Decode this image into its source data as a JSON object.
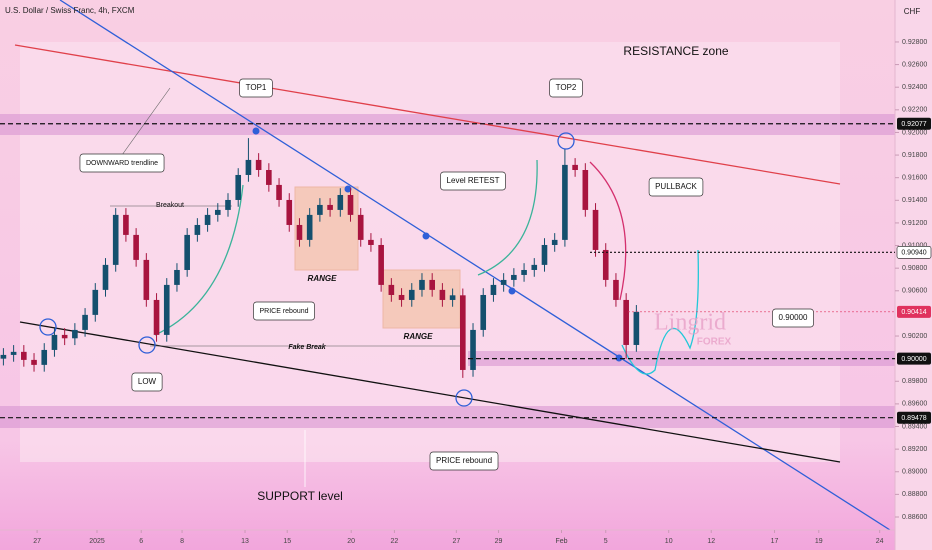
{
  "chart_data": {
    "type": "candlestick",
    "title": "U.S. Dollar / Swiss Franc, 4h, FXCM",
    "currency": "CHF",
    "up_color": "#14506e",
    "down_color": "#a8143f",
    "grid": false,
    "xlim": [
      -1,
      262
    ],
    "ylim": [
      0.88485,
      0.93171
    ],
    "xticks": [
      {
        "value": 9.9,
        "label": "27"
      },
      {
        "value": 27.5,
        "label": "2025"
      },
      {
        "value": 40.5,
        "label": "6"
      },
      {
        "value": 52.5,
        "label": "8"
      },
      {
        "value": 71,
        "label": "13"
      },
      {
        "value": 83.4,
        "label": "15"
      },
      {
        "value": 102.2,
        "label": "20"
      },
      {
        "value": 114.9,
        "label": "22"
      },
      {
        "value": 133.1,
        "label": "27"
      },
      {
        "value": 145.5,
        "label": "29"
      },
      {
        "value": 164,
        "label": "Feb"
      },
      {
        "value": 177,
        "label": "5"
      },
      {
        "value": 195.5,
        "label": "10"
      },
      {
        "value": 208,
        "label": "12"
      },
      {
        "value": 226.6,
        "label": "17"
      },
      {
        "value": 239.6,
        "label": "19"
      },
      {
        "value": 257.5,
        "label": "24"
      }
    ],
    "yticks": [
      {
        "value": 0.928,
        "label": "0.92800"
      },
      {
        "value": 0.926,
        "label": "0.92600"
      },
      {
        "value": 0.924,
        "label": "0.92400"
      },
      {
        "value": 0.922,
        "label": "0.92200"
      },
      {
        "value": 0.92,
        "label": "0.92000"
      },
      {
        "value": 0.918,
        "label": "0.91800"
      },
      {
        "value": 0.916,
        "label": "0.91600"
      },
      {
        "value": 0.914,
        "label": "0.91400"
      },
      {
        "value": 0.912,
        "label": "0.91200"
      },
      {
        "value": 0.91,
        "label": "0.91000"
      },
      {
        "value": 0.908,
        "label": "0.90800"
      },
      {
        "value": 0.906,
        "label": "0.90600"
      },
      {
        "value": 0.902,
        "label": "0.90200"
      },
      {
        "value": 0.898,
        "label": "0.89800"
      },
      {
        "value": 0.896,
        "label": "0.89600"
      },
      {
        "value": 0.894,
        "label": "0.89400"
      },
      {
        "value": 0.892,
        "label": "0.89200"
      },
      {
        "value": 0.89,
        "label": "0.89000"
      },
      {
        "value": 0.888,
        "label": "0.88800"
      },
      {
        "value": 0.886,
        "label": "0.88600"
      }
    ],
    "price_levels": [
      {
        "value": 0.92077,
        "label": "0.92077",
        "color": "#111111"
      },
      {
        "value": 0.9094,
        "label": "0.90940",
        "color": "#ffffff"
      },
      {
        "value": 0.90414,
        "label": "0.90414",
        "color": "#e0325e"
      },
      {
        "value": 0.9,
        "label": "0.90000",
        "color": "#111111"
      },
      {
        "value": 0.89478,
        "label": "0.89478",
        "color": "#111111"
      }
    ],
    "x": [
      0,
      3,
      6,
      9,
      12,
      15,
      18,
      21,
      24,
      27,
      30,
      33,
      36,
      39,
      42,
      45,
      48,
      51,
      54,
      57,
      60,
      63,
      66,
      69,
      72,
      75,
      78,
      81,
      84,
      87,
      90,
      93,
      96,
      99,
      102,
      105,
      108,
      111,
      114,
      117,
      120,
      123,
      126,
      129,
      132,
      135,
      138,
      141,
      144,
      147,
      150,
      153,
      156,
      159,
      162,
      165,
      168,
      171,
      174,
      177,
      180,
      183,
      186
    ],
    "open": [
      0.9,
      0.90033,
      0.9006,
      0.89989,
      0.89945,
      0.90077,
      0.9021,
      0.9018,
      0.90254,
      0.90387,
      0.90608,
      0.90829,
      0.91271,
      0.91094,
      0.90873,
      0.90519,
      0.9021,
      0.90652,
      0.90784,
      0.91094,
      0.91182,
      0.91271,
      0.91315,
      0.91403,
      0.91624,
      0.91757,
      0.91668,
      0.91536,
      0.91403,
      0.91182,
      0.9105,
      0.91271,
      0.91359,
      0.91315,
      0.91447,
      0.91271,
      0.9105,
      0.91005,
      0.90652,
      0.90563,
      0.90519,
      0.90608,
      0.90696,
      0.90608,
      0.90519,
      0.9056,
      0.899,
      0.90254,
      0.90563,
      0.90652,
      0.90696,
      0.9074,
      0.90784,
      0.90829,
      0.91005,
      0.9105,
      0.91713,
      0.91668,
      0.91315,
      0.90961,
      0.90696,
      0.90519,
      0.90121
    ],
    "high": [
      0.90093,
      0.9012,
      0.9012,
      0.90049,
      0.90137,
      0.9027,
      0.9027,
      0.90314,
      0.90447,
      0.90668,
      0.90889,
      0.91331,
      0.91331,
      0.91154,
      0.90933,
      0.90579,
      0.90712,
      0.90844,
      0.91154,
      0.91242,
      0.91331,
      0.91375,
      0.91463,
      0.91684,
      0.9195,
      0.91817,
      0.91728,
      0.91596,
      0.91463,
      0.91242,
      0.91331,
      0.91419,
      0.91419,
      0.91507,
      0.91507,
      0.91331,
      0.9111,
      0.91065,
      0.90712,
      0.90623,
      0.90668,
      0.90756,
      0.90756,
      0.90668,
      0.9062,
      0.9062,
      0.90314,
      0.90623,
      0.90712,
      0.90756,
      0.908,
      0.90844,
      0.90889,
      0.91065,
      0.9111,
      0.9185,
      0.91773,
      0.91728,
      0.91375,
      0.91021,
      0.90756,
      0.90579,
      0.90474
    ],
    "low": [
      0.8994,
      0.89973,
      0.89929,
      0.89885,
      0.89885,
      0.90017,
      0.9012,
      0.9012,
      0.90194,
      0.90327,
      0.90548,
      0.90769,
      0.91034,
      0.90813,
      0.90459,
      0.9015,
      0.9015,
      0.90592,
      0.90724,
      0.91034,
      0.91122,
      0.91211,
      0.91255,
      0.91343,
      0.91564,
      0.91608,
      0.91476,
      0.91343,
      0.91122,
      0.9099,
      0.9099,
      0.91211,
      0.91255,
      0.91255,
      0.91211,
      0.9099,
      0.90945,
      0.90592,
      0.90503,
      0.90459,
      0.90459,
      0.90548,
      0.90548,
      0.90459,
      0.90459,
      0.8983,
      0.8984,
      0.90194,
      0.90503,
      0.90592,
      0.90636,
      0.9068,
      0.90724,
      0.90769,
      0.90945,
      0.9099,
      0.91608,
      0.91255,
      0.90901,
      0.90636,
      0.90459,
      0.9,
      0.90061
    ],
    "close": [
      0.90033,
      0.9006,
      0.89989,
      0.89945,
      0.90077,
      0.9021,
      0.9018,
      0.90254,
      0.90387,
      0.90608,
      0.90829,
      0.91271,
      0.91094,
      0.90873,
      0.90519,
      0.9021,
      0.90652,
      0.90784,
      0.91094,
      0.91182,
      0.91271,
      0.91315,
      0.91403,
      0.91624,
      0.91757,
      0.91668,
      0.91536,
      0.91403,
      0.91182,
      0.9105,
      0.91271,
      0.91359,
      0.91315,
      0.91447,
      0.91271,
      0.9105,
      0.91005,
      0.90652,
      0.90563,
      0.90519,
      0.90608,
      0.90696,
      0.90608,
      0.90519,
      0.9056,
      0.899,
      0.90254,
      0.90563,
      0.90652,
      0.90696,
      0.9074,
      0.90784,
      0.90829,
      0.91005,
      0.9105,
      0.91713,
      0.91668,
      0.91315,
      0.90961,
      0.90696,
      0.90519,
      0.90121,
      0.90414
    ],
    "annotations": [
      "RESISTANCE zone",
      "TOP1",
      "TOP2",
      "DOWNWARD trendline",
      "Breakout",
      "Level RETEST",
      "PULLBACK",
      "RANGE",
      "RANGE",
      "PRICE rebound",
      "Fake Break",
      "LOW",
      "PRICE rebound",
      "SUPPORT level",
      "0.90000"
    ],
    "watermark": "Lingrid",
    "watermark_sub": "FOREX"
  }
}
